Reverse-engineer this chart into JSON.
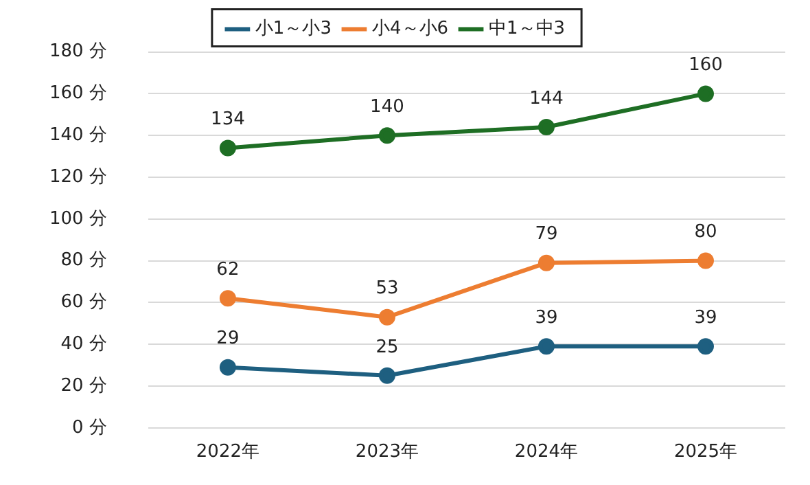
{
  "chart_data": {
    "type": "line",
    "categories": [
      "2022年",
      "2023年",
      "2024年",
      "2025年"
    ],
    "series": [
      {
        "name": "小1～小3",
        "color": "#1e5f80",
        "values": [
          29,
          25,
          39,
          39
        ]
      },
      {
        "name": "小4～小6",
        "color": "#ed7d31",
        "values": [
          62,
          53,
          79,
          80
        ]
      },
      {
        "name": "中1～中3",
        "color": "#1e6e24",
        "values": [
          134,
          140,
          144,
          160
        ]
      }
    ],
    "ylim": [
      0,
      180
    ],
    "yticks": [
      {
        "value": 0,
        "label": "0 分"
      },
      {
        "value": 20,
        "label": "20 分"
      },
      {
        "value": 40,
        "label": "40 分"
      },
      {
        "value": 60,
        "label": "60 分"
      },
      {
        "value": 80,
        "label": "80 分"
      },
      {
        "value": 100,
        "label": "100 分"
      },
      {
        "value": 120,
        "label": "120 分"
      },
      {
        "value": 140,
        "label": "140 分"
      },
      {
        "value": 160,
        "label": "160 分"
      },
      {
        "value": 180,
        "label": "180 分"
      }
    ],
    "grid": "y",
    "legend": "top",
    "marker": "circle",
    "line_style": "solid",
    "data_labels": true
  }
}
